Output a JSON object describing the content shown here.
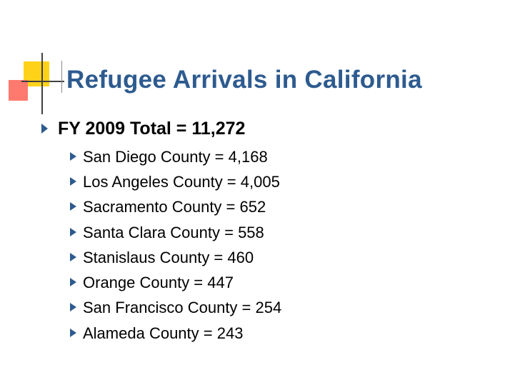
{
  "slide": {
    "title": "Refugee Arrivals in California",
    "main_point": "FY 2009 Total = 11,272",
    "counties": [
      "San Diego County = 4,168",
      "Los Angeles County = 4,005",
      "Sacramento County = 652",
      "Santa Clara County = 558",
      "Stanislaus County = 460",
      "Orange County = 447",
      "San Francisco County = 254",
      "Alameda County = 243"
    ]
  },
  "colors": {
    "title": "#2e5b8f",
    "bullet": "#2e5b8f",
    "deco_yellow": "#ffd21a",
    "deco_red": "#ff7a6e"
  }
}
